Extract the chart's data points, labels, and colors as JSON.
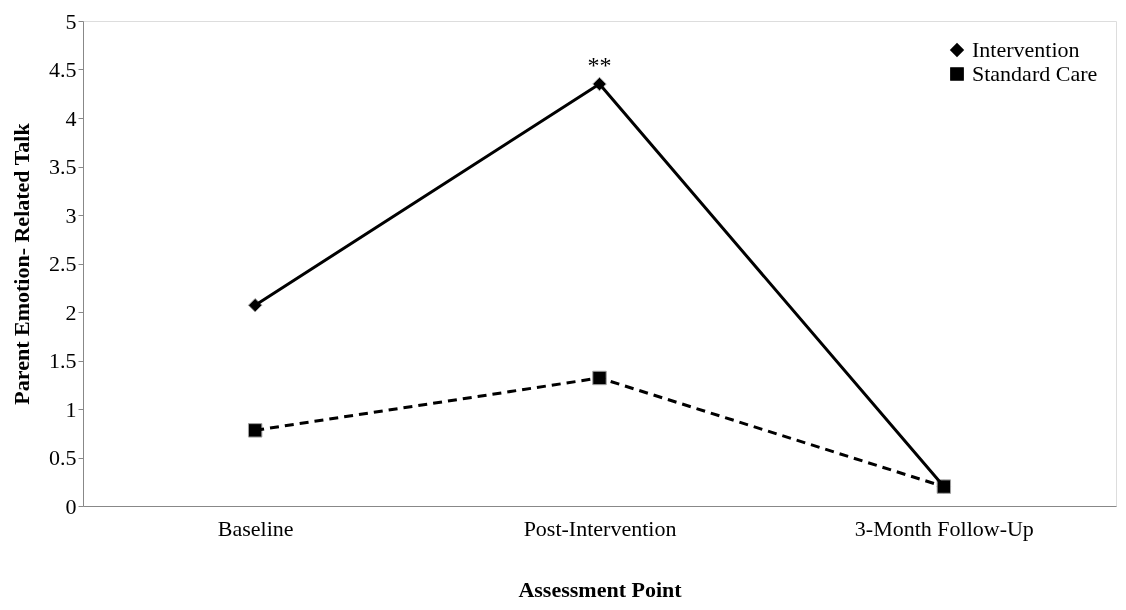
{
  "chart_data": {
    "type": "line",
    "xlabel": "Assessment Point",
    "ylabel": "Parent Emotion- Related Talk",
    "categories": [
      "Baseline",
      "Post-Intervention",
      "3-Month Follow-Up"
    ],
    "series": [
      {
        "name": "Intervention",
        "color": "#000000",
        "values": [
          2.07,
          4.35,
          0.2
        ],
        "marker": "diamond",
        "line_style": "solid"
      },
      {
        "name": "Standard Care",
        "color": "#000000",
        "values": [
          0.78,
          1.32,
          0.2
        ],
        "marker": "square",
        "line_style": "dashed"
      }
    ],
    "ylim": [
      0,
      5
    ],
    "yticks": [
      0,
      0.5,
      1,
      1.5,
      2,
      2.5,
      3,
      3.5,
      4,
      4.5,
      5
    ],
    "annotations": [
      "**"
    ],
    "grid": false,
    "legend": "top right"
  }
}
